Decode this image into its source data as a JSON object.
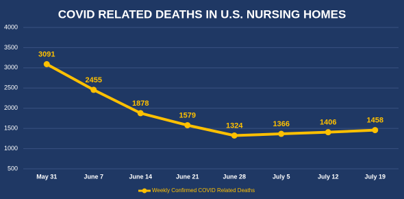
{
  "chart_data": {
    "type": "line",
    "title": "COVID RELATED DEATHS IN U.S. NURSING HOMES",
    "categories": [
      "May 31",
      "June 7",
      "June 14",
      "June 21",
      "June 28",
      "July 5",
      "July 12",
      "July 19"
    ],
    "series": [
      {
        "name": "Weekly Confirmed COVID Related Deaths",
        "color": "#ffc000",
        "values": [
          3091,
          2455,
          1878,
          1579,
          1324,
          1366,
          1406,
          1458
        ]
      }
    ],
    "ylim": [
      500,
      4000
    ],
    "yticks": [
      500,
      1000,
      1500,
      2000,
      2500,
      3000,
      3500,
      4000
    ],
    "grid": true
  }
}
